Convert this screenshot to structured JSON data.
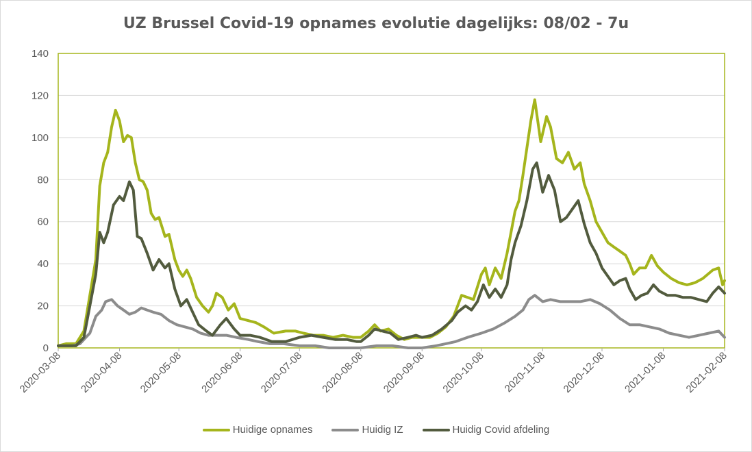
{
  "chart_data": {
    "type": "line",
    "title": "UZ Brussel Covid-19 opnames evolutie dagelijks: 08/02 - 7u",
    "xlabel": "",
    "ylabel": "",
    "ylim": [
      0,
      140
    ],
    "yticks": [
      0,
      20,
      40,
      60,
      80,
      100,
      120,
      140
    ],
    "xlim": [
      "2020-03-08",
      "2021-02-08"
    ],
    "xticks": [
      "2020-03-08",
      "2020-04-08",
      "2020-05-08",
      "2020-06-08",
      "2020-07-08",
      "2020-08-08",
      "2020-09-08",
      "2020-10-08",
      "2020-11-08",
      "2020-12-08",
      "2021-01-08",
      "2021-02-08"
    ],
    "grid": true,
    "legend_position": "bottom",
    "series": [
      {
        "name": "Huidige opnames",
        "color": "#a5b51c",
        "points": [
          [
            "2020-03-08",
            1
          ],
          [
            "2020-03-12",
            2
          ],
          [
            "2020-03-17",
            2
          ],
          [
            "2020-03-21",
            8
          ],
          [
            "2020-03-24",
            25
          ],
          [
            "2020-03-27",
            42
          ],
          [
            "2020-03-29",
            77
          ],
          [
            "2020-03-31",
            88
          ],
          [
            "2020-04-02",
            93
          ],
          [
            "2020-04-04",
            105
          ],
          [
            "2020-04-06",
            113
          ],
          [
            "2020-04-08",
            108
          ],
          [
            "2020-04-10",
            98
          ],
          [
            "2020-04-12",
            101
          ],
          [
            "2020-04-14",
            100
          ],
          [
            "2020-04-16",
            88
          ],
          [
            "2020-04-18",
            80
          ],
          [
            "2020-04-20",
            79
          ],
          [
            "2020-04-22",
            75
          ],
          [
            "2020-04-24",
            64
          ],
          [
            "2020-04-26",
            61
          ],
          [
            "2020-04-28",
            62
          ],
          [
            "2020-05-01",
            53
          ],
          [
            "2020-05-03",
            54
          ],
          [
            "2020-05-06",
            42
          ],
          [
            "2020-05-08",
            37
          ],
          [
            "2020-05-10",
            34
          ],
          [
            "2020-05-12",
            37
          ],
          [
            "2020-05-14",
            33
          ],
          [
            "2020-05-17",
            24
          ],
          [
            "2020-05-20",
            20
          ],
          [
            "2020-05-23",
            17
          ],
          [
            "2020-05-25",
            20
          ],
          [
            "2020-05-27",
            26
          ],
          [
            "2020-05-30",
            24
          ],
          [
            "2020-06-02",
            18
          ],
          [
            "2020-06-05",
            21
          ],
          [
            "2020-06-08",
            14
          ],
          [
            "2020-06-12",
            13
          ],
          [
            "2020-06-16",
            12
          ],
          [
            "2020-06-20",
            10
          ],
          [
            "2020-06-25",
            7
          ],
          [
            "2020-07-01",
            8
          ],
          [
            "2020-07-06",
            8
          ],
          [
            "2020-07-10",
            7
          ],
          [
            "2020-07-15",
            6
          ],
          [
            "2020-07-20",
            6
          ],
          [
            "2020-07-25",
            5
          ],
          [
            "2020-07-30",
            6
          ],
          [
            "2020-08-04",
            5
          ],
          [
            "2020-08-08",
            5
          ],
          [
            "2020-08-12",
            8
          ],
          [
            "2020-08-15",
            11
          ],
          [
            "2020-08-18",
            8
          ],
          [
            "2020-08-22",
            9
          ],
          [
            "2020-08-26",
            6
          ],
          [
            "2020-08-30",
            4
          ],
          [
            "2020-09-03",
            5
          ],
          [
            "2020-09-08",
            5
          ],
          [
            "2020-09-12",
            5
          ],
          [
            "2020-09-16",
            7
          ],
          [
            "2020-09-20",
            10
          ],
          [
            "2020-09-24",
            15
          ],
          [
            "2020-09-26",
            20
          ],
          [
            "2020-09-28",
            25
          ],
          [
            "2020-10-01",
            24
          ],
          [
            "2020-10-04",
            23
          ],
          [
            "2020-10-08",
            35
          ],
          [
            "2020-10-10",
            38
          ],
          [
            "2020-10-12",
            30
          ],
          [
            "2020-10-15",
            38
          ],
          [
            "2020-10-18",
            33
          ],
          [
            "2020-10-21",
            45
          ],
          [
            "2020-10-23",
            55
          ],
          [
            "2020-10-25",
            65
          ],
          [
            "2020-10-27",
            70
          ],
          [
            "2020-10-29",
            82
          ],
          [
            "2020-10-31",
            95
          ],
          [
            "2020-11-02",
            108
          ],
          [
            "2020-11-04",
            118
          ],
          [
            "2020-11-07",
            98
          ],
          [
            "2020-11-10",
            110
          ],
          [
            "2020-11-12",
            105
          ],
          [
            "2020-11-15",
            90
          ],
          [
            "2020-11-18",
            88
          ],
          [
            "2020-11-21",
            93
          ],
          [
            "2020-11-24",
            85
          ],
          [
            "2020-11-27",
            88
          ],
          [
            "2020-11-29",
            78
          ],
          [
            "2020-12-02",
            70
          ],
          [
            "2020-12-05",
            60
          ],
          [
            "2020-12-08",
            55
          ],
          [
            "2020-12-11",
            50
          ],
          [
            "2020-12-14",
            48
          ],
          [
            "2020-12-17",
            46
          ],
          [
            "2020-12-20",
            44
          ],
          [
            "2020-12-22",
            40
          ],
          [
            "2020-12-24",
            35
          ],
          [
            "2020-12-27",
            38
          ],
          [
            "2020-12-30",
            38
          ],
          [
            "2021-01-02",
            44
          ],
          [
            "2021-01-05",
            39
          ],
          [
            "2021-01-08",
            36
          ],
          [
            "2021-01-12",
            33
          ],
          [
            "2021-01-16",
            31
          ],
          [
            "2021-01-20",
            30
          ],
          [
            "2021-01-24",
            31
          ],
          [
            "2021-01-28",
            33
          ],
          [
            "2021-02-02",
            37
          ],
          [
            "2021-02-05",
            38
          ],
          [
            "2021-02-07",
            30
          ],
          [
            "2021-02-08",
            32
          ]
        ]
      },
      {
        "name": "Huidig IZ",
        "color": "#8c8c8c",
        "points": [
          [
            "2020-03-08",
            1
          ],
          [
            "2020-03-15",
            1
          ],
          [
            "2020-03-19",
            2
          ],
          [
            "2020-03-22",
            5
          ],
          [
            "2020-03-24",
            7
          ],
          [
            "2020-03-27",
            15
          ],
          [
            "2020-03-30",
            18
          ],
          [
            "2020-04-01",
            22
          ],
          [
            "2020-04-04",
            23
          ],
          [
            "2020-04-07",
            20
          ],
          [
            "2020-04-10",
            18
          ],
          [
            "2020-04-13",
            16
          ],
          [
            "2020-04-16",
            17
          ],
          [
            "2020-04-19",
            19
          ],
          [
            "2020-04-22",
            18
          ],
          [
            "2020-04-25",
            17
          ],
          [
            "2020-04-29",
            16
          ],
          [
            "2020-05-03",
            13
          ],
          [
            "2020-05-07",
            11
          ],
          [
            "2020-05-11",
            10
          ],
          [
            "2020-05-15",
            9
          ],
          [
            "2020-05-19",
            7
          ],
          [
            "2020-05-23",
            6
          ],
          [
            "2020-05-27",
            6
          ],
          [
            "2020-06-01",
            6
          ],
          [
            "2020-06-06",
            5
          ],
          [
            "2020-06-12",
            4
          ],
          [
            "2020-06-17",
            3
          ],
          [
            "2020-06-23",
            2
          ],
          [
            "2020-06-30",
            2
          ],
          [
            "2020-07-08",
            1
          ],
          [
            "2020-07-16",
            1
          ],
          [
            "2020-07-23",
            0
          ],
          [
            "2020-08-01",
            0
          ],
          [
            "2020-08-08",
            0
          ],
          [
            "2020-08-16",
            1
          ],
          [
            "2020-08-24",
            1
          ],
          [
            "2020-09-01",
            0
          ],
          [
            "2020-09-08",
            0
          ],
          [
            "2020-09-15",
            1
          ],
          [
            "2020-09-20",
            2
          ],
          [
            "2020-09-25",
            3
          ],
          [
            "2020-10-01",
            5
          ],
          [
            "2020-10-08",
            7
          ],
          [
            "2020-10-14",
            9
          ],
          [
            "2020-10-20",
            12
          ],
          [
            "2020-10-25",
            15
          ],
          [
            "2020-10-29",
            18
          ],
          [
            "2020-11-01",
            23
          ],
          [
            "2020-11-04",
            25
          ],
          [
            "2020-11-08",
            22
          ],
          [
            "2020-11-12",
            23
          ],
          [
            "2020-11-17",
            22
          ],
          [
            "2020-11-22",
            22
          ],
          [
            "2020-11-27",
            22
          ],
          [
            "2020-12-02",
            23
          ],
          [
            "2020-12-07",
            21
          ],
          [
            "2020-12-12",
            18
          ],
          [
            "2020-12-17",
            14
          ],
          [
            "2020-12-22",
            11
          ],
          [
            "2020-12-27",
            11
          ],
          [
            "2021-01-01",
            10
          ],
          [
            "2021-01-06",
            9
          ],
          [
            "2021-01-11",
            7
          ],
          [
            "2021-01-16",
            6
          ],
          [
            "2021-01-21",
            5
          ],
          [
            "2021-01-26",
            6
          ],
          [
            "2021-01-31",
            7
          ],
          [
            "2021-02-05",
            8
          ],
          [
            "2021-02-08",
            5
          ]
        ]
      },
      {
        "name": "Huidig Covid afdeling",
        "color": "#525b3e",
        "points": [
          [
            "2020-03-08",
            1
          ],
          [
            "2020-03-17",
            1
          ],
          [
            "2020-03-21",
            5
          ],
          [
            "2020-03-24",
            20
          ],
          [
            "2020-03-27",
            35
          ],
          [
            "2020-03-29",
            55
          ],
          [
            "2020-03-31",
            50
          ],
          [
            "2020-04-02",
            55
          ],
          [
            "2020-04-05",
            68
          ],
          [
            "2020-04-08",
            72
          ],
          [
            "2020-04-10",
            70
          ],
          [
            "2020-04-13",
            79
          ],
          [
            "2020-04-15",
            75
          ],
          [
            "2020-04-17",
            53
          ],
          [
            "2020-04-19",
            52
          ],
          [
            "2020-04-22",
            45
          ],
          [
            "2020-04-25",
            37
          ],
          [
            "2020-04-28",
            42
          ],
          [
            "2020-05-01",
            38
          ],
          [
            "2020-05-03",
            40
          ],
          [
            "2020-05-06",
            28
          ],
          [
            "2020-05-09",
            20
          ],
          [
            "2020-05-12",
            23
          ],
          [
            "2020-05-15",
            17
          ],
          [
            "2020-05-18",
            11
          ],
          [
            "2020-05-22",
            8
          ],
          [
            "2020-05-25",
            6
          ],
          [
            "2020-05-29",
            11
          ],
          [
            "2020-06-01",
            14
          ],
          [
            "2020-06-05",
            9
          ],
          [
            "2020-06-08",
            6
          ],
          [
            "2020-06-13",
            6
          ],
          [
            "2020-06-18",
            5
          ],
          [
            "2020-06-24",
            3
          ],
          [
            "2020-07-01",
            3
          ],
          [
            "2020-07-08",
            5
          ],
          [
            "2020-07-14",
            6
          ],
          [
            "2020-07-20",
            5
          ],
          [
            "2020-07-26",
            4
          ],
          [
            "2020-08-01",
            4
          ],
          [
            "2020-08-06",
            3
          ],
          [
            "2020-08-08",
            3
          ],
          [
            "2020-08-12",
            6
          ],
          [
            "2020-08-15",
            9
          ],
          [
            "2020-08-19",
            8
          ],
          [
            "2020-08-23",
            7
          ],
          [
            "2020-08-27",
            4
          ],
          [
            "2020-09-01",
            5
          ],
          [
            "2020-09-05",
            6
          ],
          [
            "2020-09-08",
            5
          ],
          [
            "2020-09-13",
            6
          ],
          [
            "2020-09-18",
            9
          ],
          [
            "2020-09-23",
            13
          ],
          [
            "2020-09-26",
            17
          ],
          [
            "2020-09-30",
            20
          ],
          [
            "2020-10-03",
            18
          ],
          [
            "2020-10-06",
            22
          ],
          [
            "2020-10-09",
            30
          ],
          [
            "2020-10-12",
            24
          ],
          [
            "2020-10-15",
            28
          ],
          [
            "2020-10-18",
            24
          ],
          [
            "2020-10-21",
            30
          ],
          [
            "2020-10-23",
            42
          ],
          [
            "2020-10-25",
            50
          ],
          [
            "2020-10-28",
            58
          ],
          [
            "2020-10-31",
            70
          ],
          [
            "2020-11-03",
            85
          ],
          [
            "2020-11-05",
            88
          ],
          [
            "2020-11-08",
            74
          ],
          [
            "2020-11-11",
            82
          ],
          [
            "2020-11-14",
            75
          ],
          [
            "2020-11-17",
            60
          ],
          [
            "2020-11-20",
            62
          ],
          [
            "2020-11-23",
            66
          ],
          [
            "2020-11-26",
            70
          ],
          [
            "2020-11-29",
            59
          ],
          [
            "2020-12-02",
            50
          ],
          [
            "2020-12-05",
            45
          ],
          [
            "2020-12-08",
            38
          ],
          [
            "2020-12-11",
            34
          ],
          [
            "2020-12-14",
            30
          ],
          [
            "2020-12-17",
            32
          ],
          [
            "2020-12-20",
            33
          ],
          [
            "2020-12-22",
            28
          ],
          [
            "2020-12-25",
            23
          ],
          [
            "2020-12-28",
            25
          ],
          [
            "2020-12-31",
            26
          ],
          [
            "2021-01-03",
            30
          ],
          [
            "2021-01-06",
            27
          ],
          [
            "2021-01-10",
            25
          ],
          [
            "2021-01-14",
            25
          ],
          [
            "2021-01-18",
            24
          ],
          [
            "2021-01-22",
            24
          ],
          [
            "2021-01-26",
            23
          ],
          [
            "2021-01-30",
            22
          ],
          [
            "2021-02-02",
            26
          ],
          [
            "2021-02-05",
            29
          ],
          [
            "2021-02-08",
            26
          ]
        ]
      }
    ]
  },
  "legend": {
    "items": [
      {
        "label": "Huidige opnames",
        "color": "#a5b51c"
      },
      {
        "label": "Huidig IZ",
        "color": "#8c8c8c"
      },
      {
        "label": "Huidig Covid afdeling",
        "color": "#525b3e"
      }
    ]
  },
  "colors": {
    "plot_border": "#a5b51c",
    "gridline": "#d9d9d9",
    "text": "#595959"
  }
}
